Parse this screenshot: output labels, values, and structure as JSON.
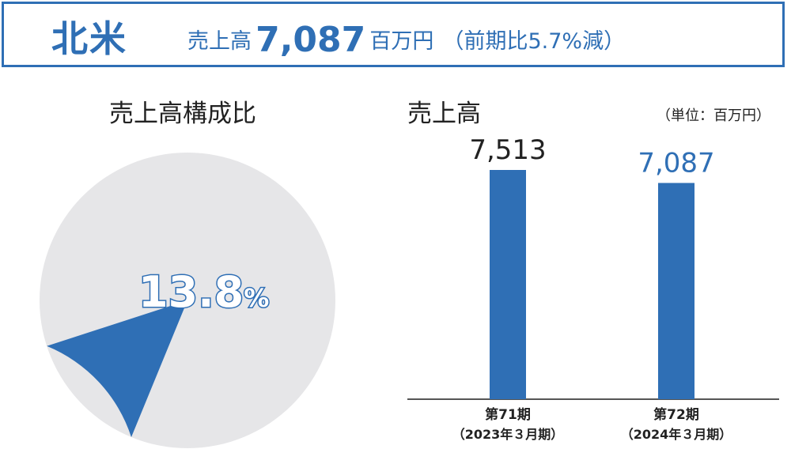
{
  "header": {
    "region": "北米",
    "sales_label": "売上高",
    "sales_value": "7,087",
    "sales_unit": "百万円",
    "change_text": "（前期比5.7%減）"
  },
  "pie": {
    "title": "売上高構成比",
    "value_text": "13.8",
    "percent_sign": "%"
  },
  "bars": {
    "title": "売上高",
    "unit_note": "（単位：百万円）"
  },
  "colors": {
    "accent": "#2f6fb5",
    "pie_rest": "#e6e6e8",
    "axis": "#555555"
  },
  "chart_data": [
    {
      "type": "pie",
      "title": "売上高構成比",
      "slices": [
        {
          "label": "北米",
          "value": 13.8
        },
        {
          "label": "",
          "value": 86.2
        }
      ]
    },
    {
      "type": "bar",
      "title": "売上高",
      "unit": "百万円",
      "categories": [
        {
          "line1": "第71期",
          "line2": "（2023年３月期）"
        },
        {
          "line1": "第72期",
          "line2": "（2024年３月期）"
        }
      ],
      "values": [
        7513,
        7087
      ],
      "value_labels": [
        "7,513",
        "7,087"
      ],
      "label_colors": [
        "#222222",
        "#2f6fb5"
      ],
      "ylim": [
        0,
        8000
      ]
    }
  ]
}
